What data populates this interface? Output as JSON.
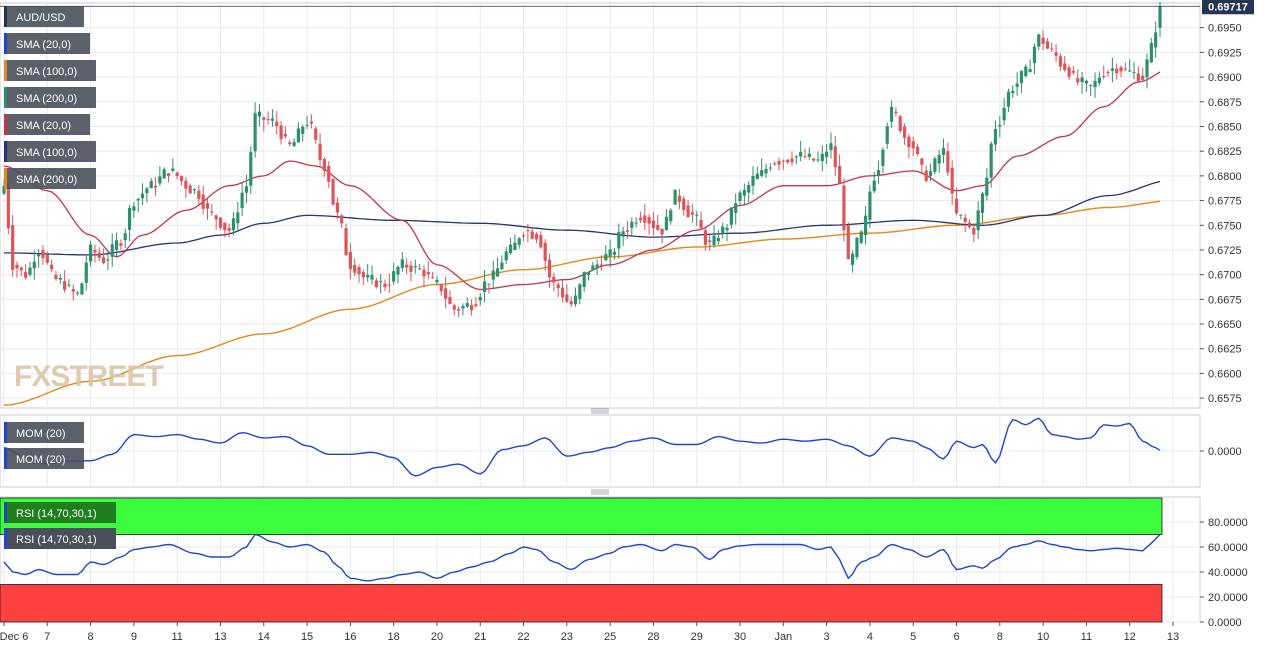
{
  "colors": {
    "up": "#2e8f6e",
    "down": "#d9565b",
    "sma20": "#c0364d",
    "sma100": "#2a3472",
    "sma200": "#e08a1e",
    "mom": "#2046c8",
    "rsi": "#2046c8",
    "overbought_zone": "#3dfc3d",
    "oversold_zone": "#fd4040",
    "price_tag": "#27344f",
    "grid": "#e6e9ef",
    "watermark": "#d9c3a5"
  },
  "chart_data": [
    {
      "panel": "price",
      "type": "candlestick",
      "symbol": "AUD/USD",
      "last_price_label": "0.69717",
      "last_price": 0.69717,
      "watermark": "FXSTREET",
      "ylim": [
        0.6565,
        0.6975
      ],
      "y_tick_labels": [
        "0.6950",
        "0.6925",
        "0.6900",
        "0.6875",
        "0.6850",
        "0.6825",
        "0.6800",
        "0.6775",
        "0.6750",
        "0.6725",
        "0.6700",
        "0.6675",
        "0.6650",
        "0.6625",
        "0.6600",
        "0.6575"
      ],
      "y_tick_values": [
        0.695,
        0.6925,
        0.69,
        0.6875,
        0.685,
        0.6825,
        0.68,
        0.6775,
        0.675,
        0.6725,
        0.67,
        0.6675,
        0.665,
        0.6625,
        0.66,
        0.6575
      ],
      "x_tick_labels": [
        "Dec 6",
        "7",
        "8",
        "9",
        "11",
        "13",
        "14",
        "15",
        "16",
        "18",
        "20",
        "21",
        "22",
        "23",
        "25",
        "28",
        "29",
        "30",
        "Jan",
        "3",
        "4",
        "5",
        "6",
        "8",
        "10",
        "11",
        "12",
        "13"
      ],
      "x_tick_index": [
        0,
        10,
        20,
        30,
        40,
        50,
        60,
        70,
        80,
        90,
        100,
        110,
        120,
        130,
        140,
        150,
        160,
        170,
        180,
        190,
        200,
        210,
        220,
        230,
        240,
        250,
        260,
        270
      ],
      "legend": [
        {
          "label": "AUD/USD",
          "color_key": "price_tag"
        },
        {
          "label": "SMA (20,0)",
          "color_key": "mom"
        },
        {
          "label": "SMA (100,0)",
          "color_key": "sma200"
        },
        {
          "label": "SMA (200,0)",
          "color_key": "up"
        },
        {
          "label": "SMA (20,0)",
          "color_key": "sma20"
        },
        {
          "label": "SMA (100,0)",
          "color_key": "sma100"
        },
        {
          "label": "SMA (200,0)",
          "color_key": "sma200"
        }
      ],
      "close_anchors": [
        [
          0,
          0.679
        ],
        [
          2,
          0.671
        ],
        [
          5,
          0.67
        ],
        [
          8,
          0.6725
        ],
        [
          12,
          0.6695
        ],
        [
          17,
          0.668
        ],
        [
          20,
          0.6725
        ],
        [
          23,
          0.6715
        ],
        [
          27,
          0.6735
        ],
        [
          30,
          0.6775
        ],
        [
          34,
          0.679
        ],
        [
          38,
          0.6805
        ],
        [
          44,
          0.6785
        ],
        [
          48,
          0.676
        ],
        [
          52,
          0.6745
        ],
        [
          56,
          0.679
        ],
        [
          58,
          0.686
        ],
        [
          62,
          0.6855
        ],
        [
          66,
          0.683
        ],
        [
          70,
          0.6855
        ],
        [
          74,
          0.681
        ],
        [
          77,
          0.676
        ],
        [
          80,
          0.671
        ],
        [
          84,
          0.6695
        ],
        [
          88,
          0.669
        ],
        [
          92,
          0.671
        ],
        [
          96,
          0.6705
        ],
        [
          100,
          0.669
        ],
        [
          104,
          0.6665
        ],
        [
          108,
          0.667
        ],
        [
          112,
          0.6695
        ],
        [
          117,
          0.6725
        ],
        [
          120,
          0.6745
        ],
        [
          123,
          0.674
        ],
        [
          127,
          0.669
        ],
        [
          131,
          0.667
        ],
        [
          135,
          0.6705
        ],
        [
          140,
          0.672
        ],
        [
          143,
          0.6745
        ],
        [
          147,
          0.676
        ],
        [
          152,
          0.6745
        ],
        [
          155,
          0.678
        ],
        [
          159,
          0.676
        ],
        [
          163,
          0.673
        ],
        [
          166,
          0.6745
        ],
        [
          170,
          0.678
        ],
        [
          174,
          0.68
        ],
        [
          178,
          0.6815
        ],
        [
          184,
          0.682
        ],
        [
          188,
          0.6815
        ],
        [
          191,
          0.683
        ],
        [
          193,
          0.679
        ],
        [
          195,
          0.671
        ],
        [
          198,
          0.674
        ],
        [
          201,
          0.68
        ],
        [
          205,
          0.6865
        ],
        [
          209,
          0.6835
        ],
        [
          213,
          0.68
        ],
        [
          217,
          0.6825
        ],
        [
          220,
          0.676
        ],
        [
          224,
          0.6745
        ],
        [
          226,
          0.678
        ],
        [
          229,
          0.685
        ],
        [
          233,
          0.689
        ],
        [
          236,
          0.6905
        ],
        [
          239,
          0.694
        ],
        [
          242,
          0.6925
        ],
        [
          245,
          0.691
        ],
        [
          248,
          0.6895
        ],
        [
          251,
          0.689
        ],
        [
          254,
          0.6905
        ],
        [
          257,
          0.691
        ],
        [
          260,
          0.6905
        ],
        [
          263,
          0.69
        ],
        [
          265,
          0.693
        ],
        [
          267,
          0.697
        ]
      ],
      "sma20_anchors": [
        [
          0,
          0.681
        ],
        [
          10,
          0.6785
        ],
        [
          20,
          0.674
        ],
        [
          26,
          0.6718
        ],
        [
          32,
          0.674
        ],
        [
          42,
          0.6765
        ],
        [
          52,
          0.679
        ],
        [
          60,
          0.68
        ],
        [
          66,
          0.6815
        ],
        [
          72,
          0.681
        ],
        [
          80,
          0.679
        ],
        [
          92,
          0.6755
        ],
        [
          100,
          0.671
        ],
        [
          110,
          0.6685
        ],
        [
          120,
          0.669
        ],
        [
          130,
          0.6695
        ],
        [
          140,
          0.671
        ],
        [
          150,
          0.6725
        ],
        [
          160,
          0.6745
        ],
        [
          170,
          0.677
        ],
        [
          180,
          0.679
        ],
        [
          190,
          0.679
        ],
        [
          200,
          0.68
        ],
        [
          210,
          0.6805
        ],
        [
          220,
          0.6785
        ],
        [
          226,
          0.679
        ],
        [
          234,
          0.682
        ],
        [
          245,
          0.684
        ],
        [
          254,
          0.687
        ],
        [
          262,
          0.6895
        ],
        [
          270,
          0.691
        ]
      ],
      "sma100_anchors": [
        [
          0,
          0.6722
        ],
        [
          20,
          0.672
        ],
        [
          40,
          0.6732
        ],
        [
          50,
          0.674
        ],
        [
          60,
          0.6752
        ],
        [
          70,
          0.676
        ],
        [
          90,
          0.6755
        ],
        [
          110,
          0.6752
        ],
        [
          130,
          0.6745
        ],
        [
          150,
          0.6738
        ],
        [
          170,
          0.6742
        ],
        [
          190,
          0.675
        ],
        [
          210,
          0.6755
        ],
        [
          226,
          0.675
        ],
        [
          240,
          0.676
        ],
        [
          255,
          0.678
        ],
        [
          270,
          0.6796
        ]
      ],
      "sma200_anchors": [
        [
          0,
          0.6568
        ],
        [
          20,
          0.6592
        ],
        [
          40,
          0.6618
        ],
        [
          60,
          0.664
        ],
        [
          80,
          0.6665
        ],
        [
          100,
          0.669
        ],
        [
          120,
          0.6705
        ],
        [
          140,
          0.6718
        ],
        [
          160,
          0.6728
        ],
        [
          180,
          0.6736
        ],
        [
          200,
          0.6742
        ],
        [
          220,
          0.675
        ],
        [
          240,
          0.676
        ],
        [
          255,
          0.6768
        ],
        [
          270,
          0.6775
        ]
      ]
    },
    {
      "panel": "momentum",
      "type": "line",
      "legend": [
        {
          "label": "MOM (20)"
        },
        {
          "label": "MOM (20)"
        }
      ],
      "y_tick_labels": [
        "0.0000"
      ],
      "y_tick_values": [
        0
      ],
      "ylim": [
        -0.0055,
        0.0055
      ],
      "anchors": [
        [
          0,
          0.0005
        ],
        [
          5,
          -0.001
        ],
        [
          10,
          -0.002
        ],
        [
          15,
          -0.0015
        ],
        [
          20,
          -0.0015
        ],
        [
          25,
          -0.0005
        ],
        [
          30,
          0.0025
        ],
        [
          35,
          0.0022
        ],
        [
          40,
          0.0025
        ],
        [
          45,
          0.0018
        ],
        [
          50,
          0.0012
        ],
        [
          55,
          0.0028
        ],
        [
          60,
          0.002
        ],
        [
          65,
          0.0022
        ],
        [
          70,
          0.0008
        ],
        [
          75,
          -0.0005
        ],
        [
          80,
          -0.0005
        ],
        [
          85,
          -0.0002
        ],
        [
          90,
          -0.001
        ],
        [
          95,
          -0.0038
        ],
        [
          100,
          -0.0025
        ],
        [
          105,
          -0.002
        ],
        [
          110,
          -0.0035
        ],
        [
          115,
          0.0002
        ],
        [
          120,
          0.0008
        ],
        [
          125,
          0.002
        ],
        [
          130,
          -0.0008
        ],
        [
          135,
          -0.0002
        ],
        [
          140,
          0.0005
        ],
        [
          145,
          0.0015
        ],
        [
          150,
          0.002
        ],
        [
          155,
          0.001
        ],
        [
          160,
          0.001
        ],
        [
          165,
          0.0022
        ],
        [
          170,
          0.0015
        ],
        [
          175,
          0.0012
        ],
        [
          180,
          0.0018
        ],
        [
          185,
          0.0015
        ],
        [
          190,
          0.0018
        ],
        [
          195,
          0.0008
        ],
        [
          200,
          -0.0008
        ],
        [
          205,
          0.002
        ],
        [
          210,
          0.0015
        ],
        [
          213,
          0.0005
        ],
        [
          217,
          -0.0012
        ],
        [
          220,
          0.0015
        ],
        [
          224,
          0.0005
        ],
        [
          226,
          0.001
        ],
        [
          229,
          -0.0018
        ],
        [
          233,
          0.0048
        ],
        [
          236,
          0.004
        ],
        [
          239,
          0.005
        ],
        [
          242,
          0.0025
        ],
        [
          245,
          0.0022
        ],
        [
          248,
          0.0018
        ],
        [
          251,
          0.002
        ],
        [
          254,
          0.004
        ],
        [
          257,
          0.0038
        ],
        [
          260,
          0.0042
        ],
        [
          263,
          0.0015
        ],
        [
          266,
          0.0005
        ],
        [
          268,
          -0.0003
        ],
        [
          270,
          0.0012
        ]
      ]
    },
    {
      "panel": "rsi",
      "type": "line",
      "legend": [
        {
          "label": "RSI (14,70,30,1)"
        },
        {
          "label": "RSI (14,70,30,1)"
        }
      ],
      "y_tick_labels": [
        "80.0000",
        "60.0000",
        "40.0000",
        "20.0000",
        "0.0000"
      ],
      "y_tick_values": [
        80,
        60,
        40,
        20,
        0
      ],
      "ylim": [
        0,
        100
      ],
      "overbought": 70,
      "oversold": 30,
      "anchors": [
        [
          0,
          48
        ],
        [
          2,
          40
        ],
        [
          5,
          38
        ],
        [
          8,
          42
        ],
        [
          12,
          38
        ],
        [
          17,
          38
        ],
        [
          20,
          48
        ],
        [
          23,
          46
        ],
        [
          27,
          52
        ],
        [
          30,
          58
        ],
        [
          34,
          60
        ],
        [
          38,
          62
        ],
        [
          44,
          55
        ],
        [
          48,
          52
        ],
        [
          52,
          52
        ],
        [
          56,
          60
        ],
        [
          58,
          70
        ],
        [
          62,
          64
        ],
        [
          66,
          60
        ],
        [
          70,
          62
        ],
        [
          74,
          56
        ],
        [
          77,
          45
        ],
        [
          80,
          35
        ],
        [
          84,
          33
        ],
        [
          88,
          35
        ],
        [
          92,
          38
        ],
        [
          96,
          40
        ],
        [
          100,
          35
        ],
        [
          104,
          40
        ],
        [
          108,
          44
        ],
        [
          112,
          48
        ],
        [
          117,
          55
        ],
        [
          120,
          60
        ],
        [
          123,
          58
        ],
        [
          127,
          48
        ],
        [
          131,
          42
        ],
        [
          135,
          50
        ],
        [
          140,
          55
        ],
        [
          143,
          60
        ],
        [
          147,
          62
        ],
        [
          152,
          57
        ],
        [
          155,
          62
        ],
        [
          159,
          60
        ],
        [
          163,
          50
        ],
        [
          166,
          58
        ],
        [
          170,
          61
        ],
        [
          174,
          62
        ],
        [
          178,
          62
        ],
        [
          184,
          62
        ],
        [
          188,
          58
        ],
        [
          191,
          60
        ],
        [
          193,
          50
        ],
        [
          195,
          35
        ],
        [
          198,
          48
        ],
        [
          201,
          52
        ],
        [
          205,
          62
        ],
        [
          209,
          58
        ],
        [
          213,
          52
        ],
        [
          217,
          58
        ],
        [
          220,
          42
        ],
        [
          224,
          45
        ],
        [
          226,
          43
        ],
        [
          229,
          50
        ],
        [
          233,
          60
        ],
        [
          236,
          62
        ],
        [
          239,
          65
        ],
        [
          242,
          62
        ],
        [
          245,
          60
        ],
        [
          248,
          58
        ],
        [
          251,
          57
        ],
        [
          254,
          58
        ],
        [
          257,
          59
        ],
        [
          260,
          58
        ],
        [
          263,
          57
        ],
        [
          265,
          63
        ],
        [
          267,
          70
        ]
      ]
    }
  ]
}
